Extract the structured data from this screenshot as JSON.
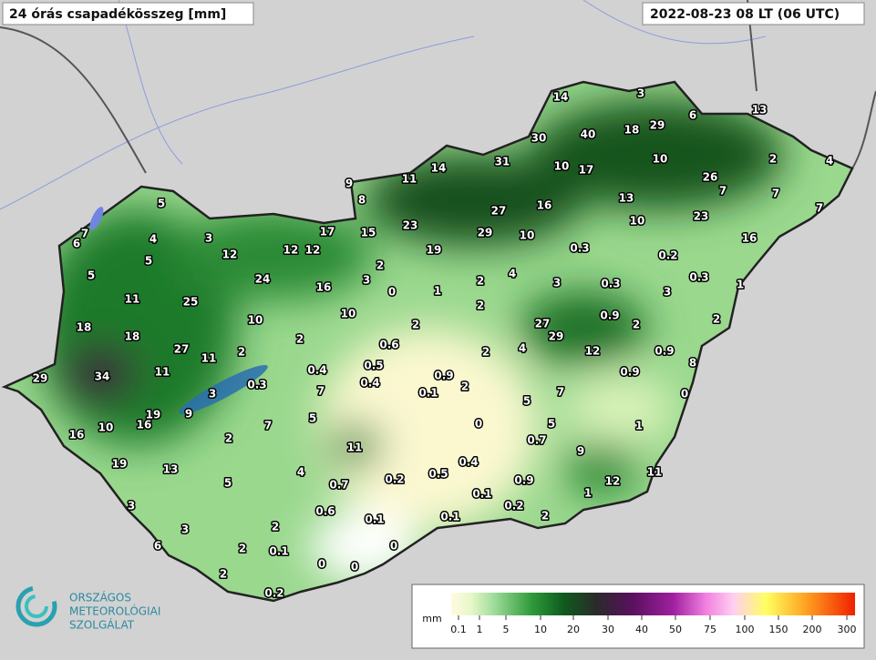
{
  "header": {
    "title": "24 órás csapadékösszeg [mm]",
    "time": "2022-08-23 08 LT (06 UTC)"
  },
  "stations": [
    "14",
    "3",
    "13",
    "6",
    "29",
    "18",
    "40",
    "30",
    "2",
    "4",
    "10",
    "10",
    "17",
    "31",
    "14",
    "11",
    "9",
    "8",
    "26",
    "7",
    "7",
    "7",
    "13",
    "16",
    "27",
    "23",
    "10",
    "23",
    "16",
    "29",
    "10",
    "19",
    "0.3",
    "0.2",
    "0.3",
    "1",
    "17",
    "15",
    "12",
    "12",
    "12",
    "5",
    "7",
    "6",
    "4",
    "3",
    "5",
    "5",
    "2",
    "3",
    "0",
    "1",
    "2",
    "4",
    "3",
    "0.3",
    "3",
    "24",
    "16",
    "11",
    "25",
    "10",
    "10",
    "2",
    "2",
    "27",
    "29",
    "0.9",
    "2",
    "2",
    "18",
    "18",
    "27",
    "11",
    "2",
    "2",
    "0.6",
    "2",
    "4",
    "12",
    "0.9",
    "8",
    "29",
    "34",
    "11",
    "0.4",
    "0.5",
    "0.4",
    "0.9",
    "2",
    "0.3",
    "0.9",
    "3",
    "7",
    "0.1",
    "5",
    "7",
    "0",
    "19",
    "9",
    "16",
    "10",
    "16",
    "5",
    "7",
    "2",
    "0",
    "5",
    "1",
    "0.7",
    "11",
    "9",
    "19",
    "13",
    "0.4",
    "0.5",
    "0.2",
    "4",
    "5",
    "0.7",
    "0.9",
    "12",
    "11",
    "3",
    "1",
    "0.1",
    "0.2",
    "0.6",
    "0.1",
    "0.1",
    "2",
    "3",
    "2",
    "6",
    "2",
    "0.1",
    "0",
    "0",
    "0",
    "2",
    "0.2"
  ],
  "legend": {
    "unit": "mm",
    "ticks": [
      "0.1",
      "1",
      "5",
      "10",
      "20",
      "30",
      "40",
      "50",
      "75",
      "100",
      "150",
      "200",
      "300"
    ]
  },
  "logo": {
    "line1": "ORSZÁGOS",
    "line2": "METEOROLÓGIAI",
    "line3": "SZOLGÁLAT"
  }
}
